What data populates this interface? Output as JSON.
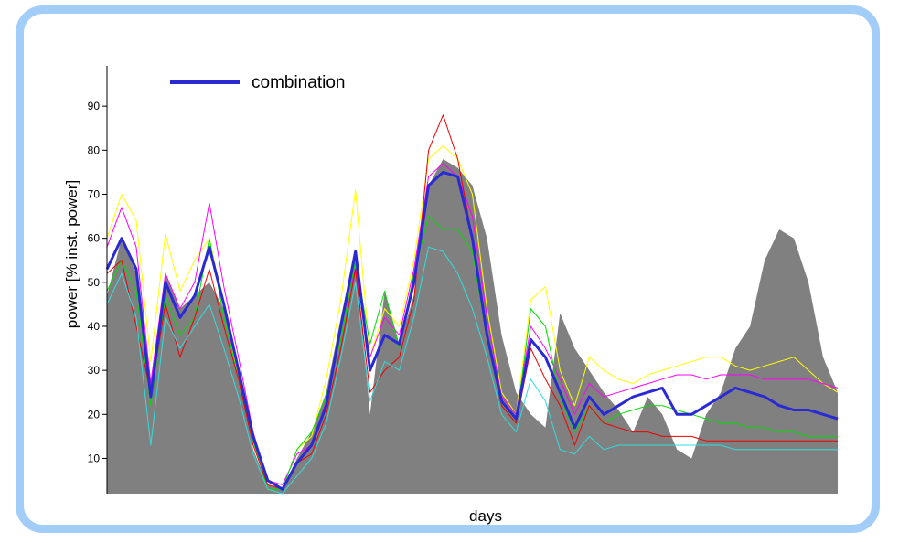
{
  "chart_data": {
    "type": "line",
    "xlabel": "days",
    "ylabel": "power [% inst. power]",
    "ylim": [
      2,
      100
    ],
    "yticks": [
      "10",
      "20",
      "30",
      "40",
      "50",
      "60",
      "70",
      "80",
      "90"
    ],
    "legend": {
      "placement": "top-left",
      "entries": [
        {
          "name": "combination",
          "color": "#2a2ad4"
        }
      ]
    },
    "x": [
      0,
      0.02,
      0.04,
      0.06,
      0.08,
      0.1,
      0.12,
      0.14,
      0.16,
      0.18,
      0.2,
      0.22,
      0.24,
      0.26,
      0.28,
      0.3,
      0.32,
      0.34,
      0.36,
      0.38,
      0.4,
      0.42,
      0.44,
      0.46,
      0.48,
      0.5,
      0.52,
      0.54,
      0.56,
      0.58,
      0.6,
      0.62,
      0.64,
      0.66,
      0.68,
      0.7,
      0.72,
      0.74,
      0.76,
      0.78,
      0.8,
      0.82,
      0.84,
      0.86,
      0.88,
      0.9,
      0.92,
      0.94,
      0.96,
      0.98,
      1.0
    ],
    "area": {
      "color": "#808080",
      "values": [
        47,
        60,
        52,
        28,
        52,
        44,
        47,
        50,
        44,
        30,
        12,
        4,
        3,
        10,
        16,
        25,
        42,
        57,
        20,
        48,
        36,
        47,
        72,
        78,
        76,
        72,
        60,
        38,
        25,
        20,
        17,
        43,
        35,
        30,
        25,
        21,
        16,
        24,
        20,
        12,
        10,
        20,
        25,
        35,
        40,
        55,
        62,
        60,
        50,
        33,
        25
      ]
    },
    "series": [
      {
        "name": "combination",
        "color": "#2a2ad4",
        "width": 3,
        "values": [
          53,
          60,
          53,
          24,
          50,
          42,
          47,
          58,
          45,
          30,
          15,
          5,
          3,
          9,
          13,
          22,
          40,
          57,
          30,
          38,
          36,
          50,
          72,
          75,
          74,
          60,
          38,
          23,
          19,
          37,
          33,
          25,
          17,
          24,
          20,
          22,
          24,
          25,
          26,
          20,
          20,
          22,
          24,
          26,
          25,
          24,
          22,
          21,
          21,
          20,
          19
        ]
      },
      {
        "name": "",
        "color": "#ffff00",
        "width": 1,
        "values": [
          60,
          70,
          64,
          32,
          61,
          48,
          55,
          60,
          45,
          28,
          14,
          4,
          3,
          12,
          15,
          28,
          46,
          71,
          33,
          44,
          40,
          55,
          78,
          81,
          78,
          70,
          44,
          25,
          20,
          46,
          49,
          30,
          22,
          33,
          30,
          28,
          27,
          29,
          30,
          31,
          32,
          33,
          33,
          31,
          30,
          31,
          32,
          33,
          30,
          27,
          25
        ]
      },
      {
        "name": "",
        "color": "#ff00ff",
        "width": 1,
        "values": [
          58,
          67,
          58,
          27,
          52,
          44,
          50,
          68,
          49,
          33,
          16,
          5,
          4,
          11,
          13,
          23,
          40,
          53,
          33,
          42,
          38,
          53,
          74,
          77,
          74,
          65,
          42,
          24,
          20,
          40,
          35,
          28,
          20,
          27,
          24,
          25,
          26,
          27,
          28,
          29,
          29,
          28,
          29,
          29,
          29,
          28,
          28,
          28,
          28,
          27,
          26
        ]
      },
      {
        "name": "",
        "color": "#00dd00",
        "width": 1,
        "values": [
          48,
          55,
          48,
          22,
          47,
          38,
          42,
          60,
          42,
          28,
          14,
          3,
          3,
          12,
          16,
          24,
          37,
          55,
          36,
          48,
          35,
          52,
          65,
          62,
          62,
          57,
          37,
          22,
          18,
          44,
          40,
          24,
          16,
          22,
          18,
          20,
          21,
          22,
          22,
          21,
          20,
          19,
          18,
          18,
          17,
          17,
          16,
          16,
          15,
          15,
          15
        ]
      },
      {
        "name": "",
        "color": "#ee0000",
        "width": 1,
        "values": [
          52,
          55,
          40,
          25,
          45,
          33,
          42,
          53,
          40,
          28,
          13,
          4,
          3,
          9,
          11,
          20,
          35,
          53,
          25,
          30,
          33,
          46,
          80,
          88,
          78,
          60,
          38,
          22,
          18,
          35,
          28,
          22,
          13,
          22,
          18,
          17,
          16,
          16,
          15,
          15,
          15,
          14,
          14,
          14,
          14,
          14,
          14,
          14,
          14,
          14,
          14
        ]
      },
      {
        "name": "",
        "color": "#33dddd",
        "width": 1,
        "values": [
          45,
          52,
          42,
          13,
          42,
          35,
          40,
          45,
          35,
          24,
          11,
          3,
          2,
          6,
          10,
          18,
          33,
          50,
          23,
          32,
          30,
          42,
          58,
          57,
          52,
          44,
          33,
          20,
          16,
          28,
          23,
          12,
          11,
          15,
          12,
          13,
          13,
          13,
          13,
          13,
          13,
          13,
          13,
          12,
          12,
          12,
          12,
          12,
          12,
          12,
          12
        ]
      }
    ]
  }
}
